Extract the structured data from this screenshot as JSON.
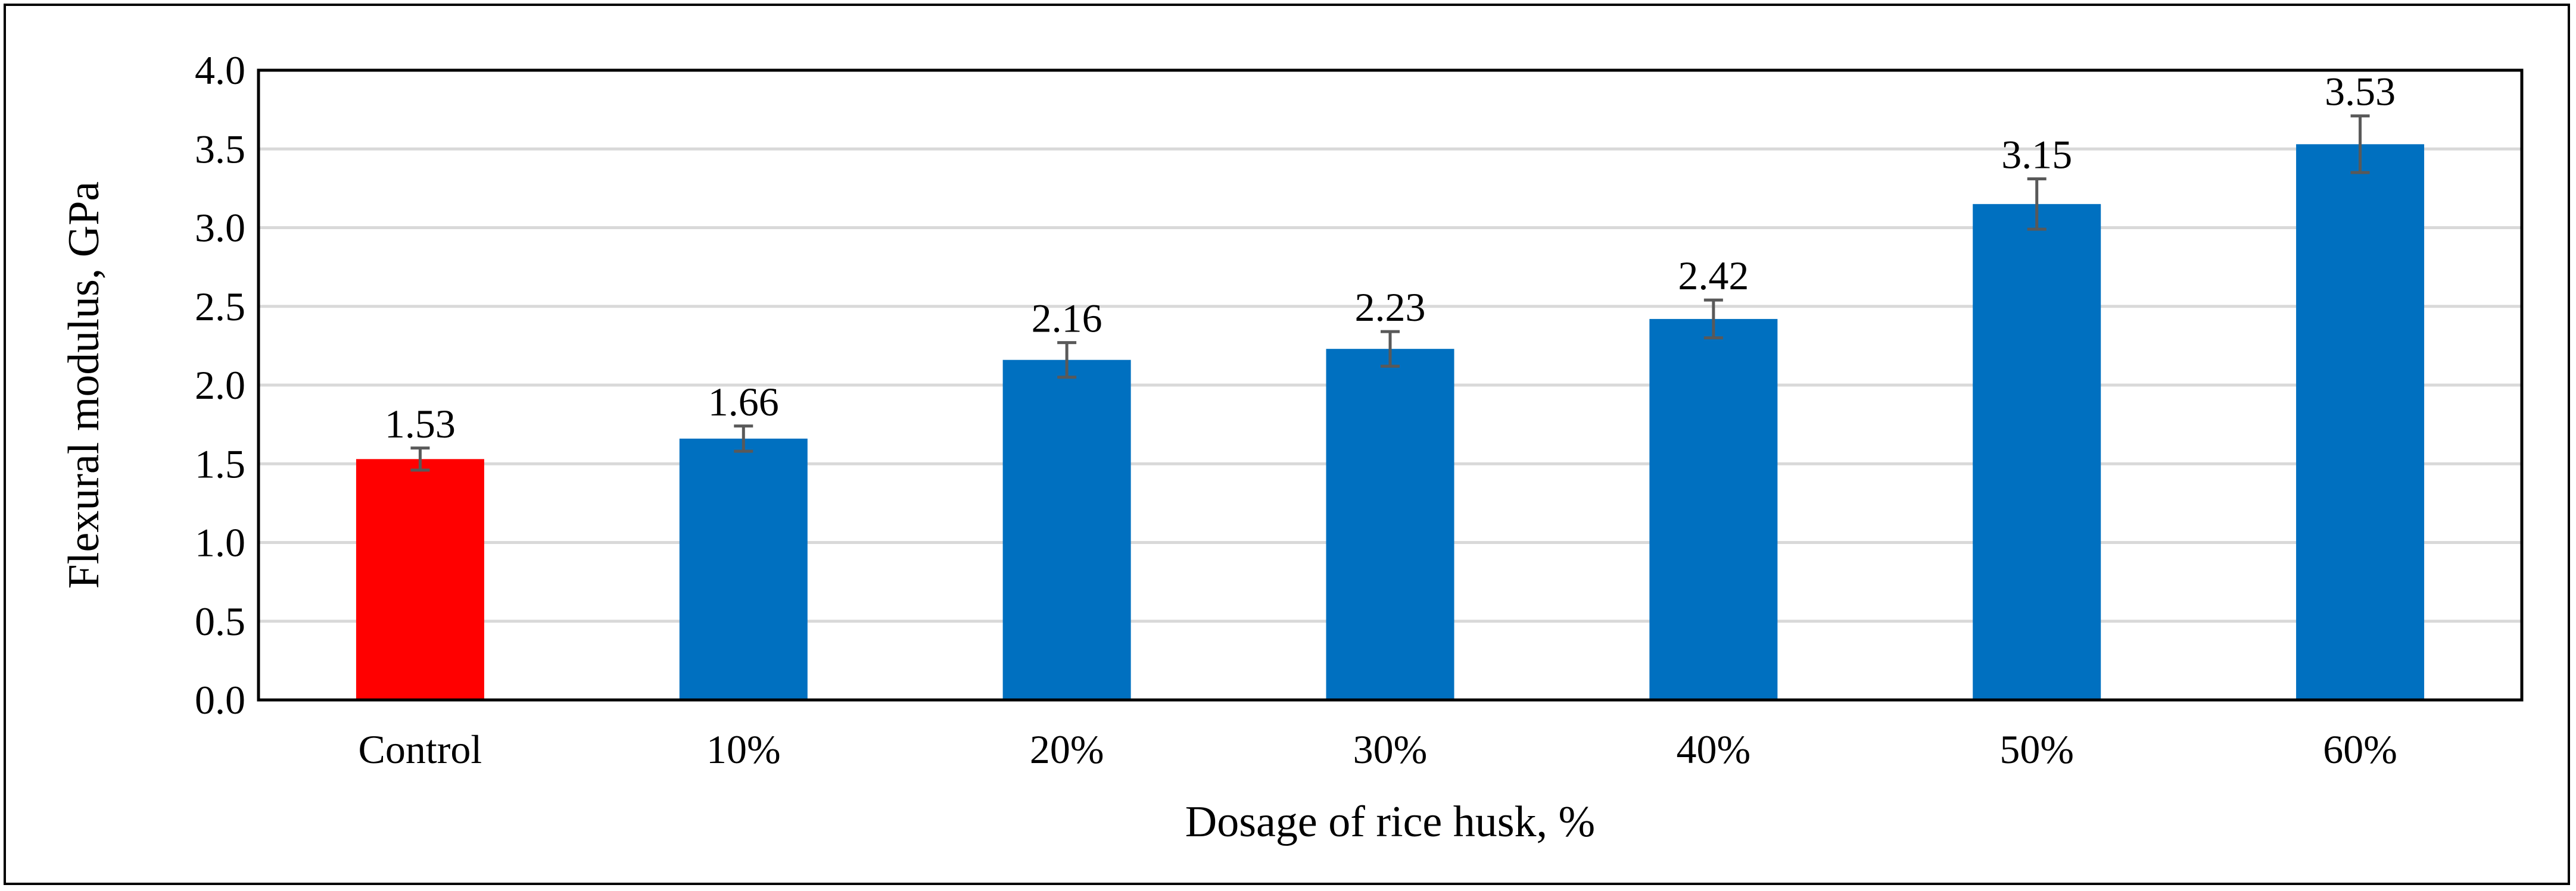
{
  "chart_data": {
    "type": "bar",
    "categories": [
      "Control",
      "10%",
      "20%",
      "30%",
      "40%",
      "50%",
      "60%"
    ],
    "values": [
      1.53,
      1.66,
      2.16,
      2.23,
      2.42,
      3.15,
      3.53
    ],
    "data_labels": [
      "1.53",
      "1.66",
      "2.16",
      "2.23",
      "2.42",
      "3.15",
      "3.53"
    ],
    "error": [
      0.07,
      0.08,
      0.11,
      0.11,
      0.12,
      0.16,
      0.18
    ],
    "bar_colors": [
      "#ff0000",
      "#0070c0",
      "#0070c0",
      "#0070c0",
      "#0070c0",
      "#0070c0",
      "#0070c0"
    ],
    "error_bar_color": "#595959",
    "xlabel": "Dosage of rice husk, %",
    "ylabel": "Flexural modulus, GPa",
    "ylim": [
      0,
      4.0
    ],
    "yticks": [
      "0.0",
      "0.5",
      "1.0",
      "1.5",
      "2.0",
      "2.5",
      "3.0",
      "3.5",
      "4.0"
    ],
    "grid": true,
    "legend": "none"
  }
}
